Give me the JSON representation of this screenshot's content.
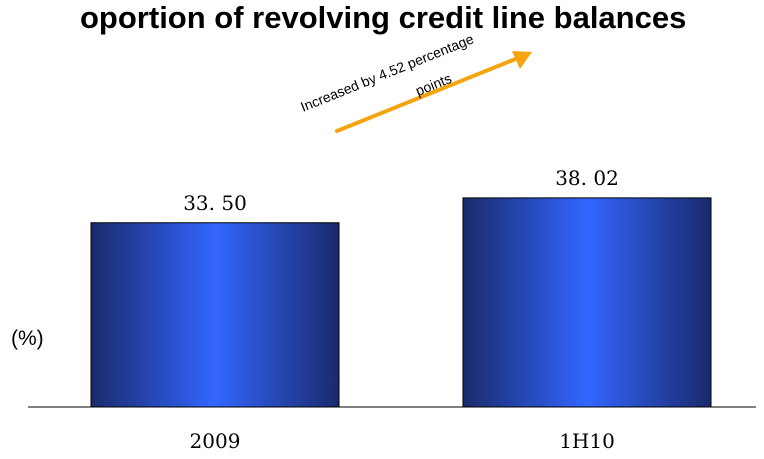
{
  "chart_data": {
    "type": "bar",
    "title": "oportion of  revolving credit line balances",
    "unit_label": "(%)",
    "categories": [
      "2009",
      "1H10"
    ],
    "values": [
      33.5,
      38.02
    ],
    "value_labels": [
      "33. 50",
      "38. 02"
    ],
    "annotation": {
      "line1": "Increased by 4.52 percentage",
      "line2": "points",
      "arrow_color": "#F5A40E"
    },
    "ylim": [
      0,
      40
    ],
    "grid": false,
    "legend": "none",
    "colors": {
      "bar_edge": "#1A2A6C",
      "bar_mid": "#3266FF",
      "bar_stroke": "#000000",
      "axis": "#000000"
    }
  }
}
